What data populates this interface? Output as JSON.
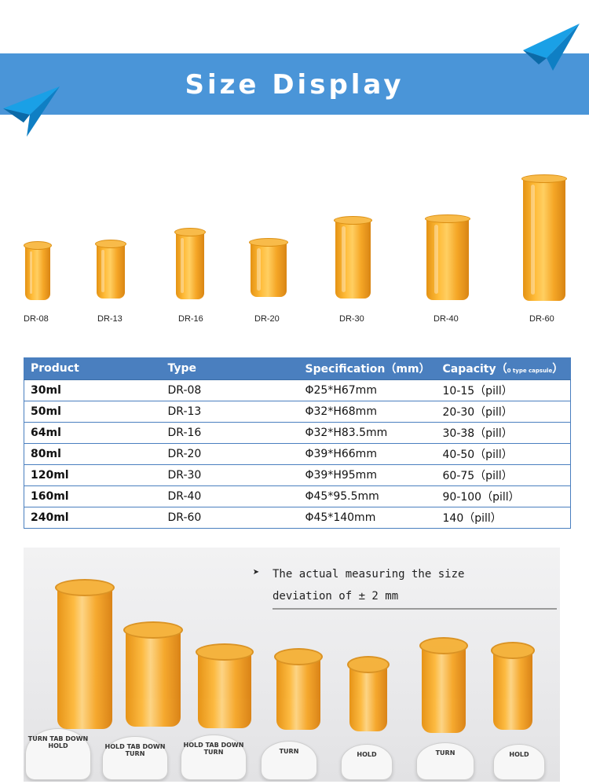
{
  "banner": {
    "title": "Size Display"
  },
  "bottles": [
    {
      "label": "DR-08"
    },
    {
      "label": "DR-13"
    },
    {
      "label": "DR-16"
    },
    {
      "label": "DR-20"
    },
    {
      "label": "DR-30"
    },
    {
      "label": "DR-40"
    },
    {
      "label": "DR-60"
    }
  ],
  "table": {
    "headers": {
      "product": "Product",
      "type": "Type",
      "specification": "Specification（mm）",
      "capacity": "Capacity（",
      "capacity_note": "0 type capsule",
      "capacity_close": "）"
    },
    "rows": [
      {
        "product": "30ml",
        "type": "DR-08",
        "spec": "Φ25*H67mm",
        "capacity": "10-15（pill）"
      },
      {
        "product": "50ml",
        "type": "DR-13",
        "spec": "Φ32*H68mm",
        "capacity": "20-30（pill）"
      },
      {
        "product": "64ml",
        "type": "DR-16",
        "spec": "Φ32*H83.5mm",
        "capacity": "30-38（pill）"
      },
      {
        "product": "80ml",
        "type": "DR-20",
        "spec": "Φ39*H66mm",
        "capacity": "40-50（pill）"
      },
      {
        "product": "120ml",
        "type": "DR-30",
        "spec": "Φ39*H95mm",
        "capacity": "60-75（pill）"
      },
      {
        "product": "160ml",
        "type": "DR-40",
        "spec": "Φ45*95.5mm",
        "capacity": "90-100（pill）"
      },
      {
        "product": "240ml",
        "type": "DR-60",
        "spec": "Φ45*140mm",
        "capacity": "140（pill）"
      }
    ]
  },
  "photo": {
    "note_arrow": "➤",
    "note_line1": "The actual measuring the size",
    "note_line2": "deviation of ± 2 mm",
    "cap_texts": [
      "TURN TAB DOWN HOLD",
      "HOLD TAB DOWN TURN",
      "HOLD TAB DOWN TURN",
      "TURN",
      "HOLD",
      "TURN",
      "HOLD"
    ]
  },
  "colors": {
    "banner": "#4a95d8",
    "table_header": "#4a7fbf",
    "bottle_amber": "#f5a015"
  }
}
